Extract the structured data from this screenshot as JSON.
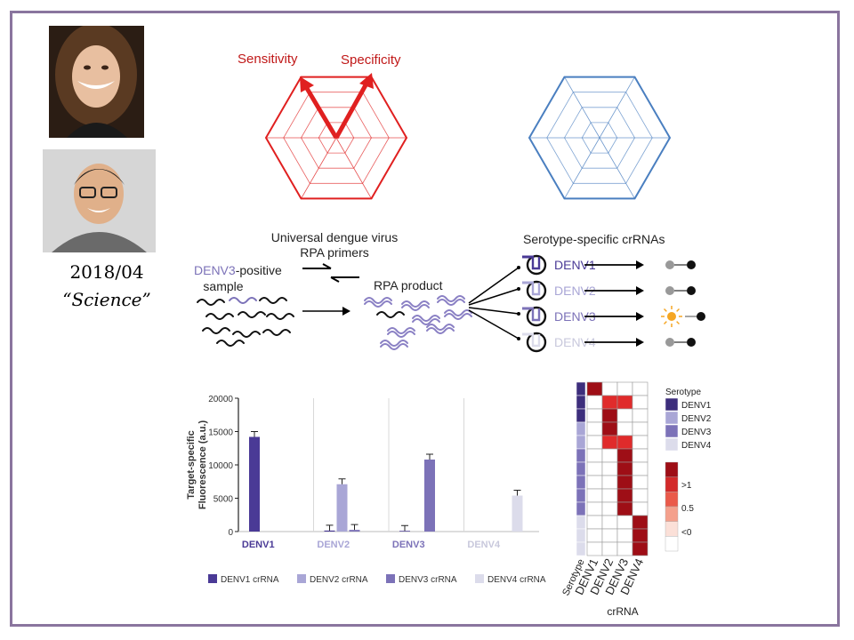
{
  "caption": {
    "date": "2018/04",
    "journal": "“Science”"
  },
  "radar": {
    "sensitivity_label": "Sensitivity",
    "specificity_label": "Specificity",
    "color_left": "#e02020",
    "color_right": "#4a7fc0"
  },
  "workflow": {
    "primers_label_1": "Universal dengue virus",
    "primers_label_2": "RPA primers",
    "sample_label_1": "DENV3-positive",
    "sample_label_2": "sample",
    "product_label": "RPA product",
    "crrna_title": "Serotype-specific crRNAs",
    "crrna_rows": [
      "DENV1",
      "DENV2",
      "DENV3",
      "DENV4"
    ]
  },
  "chart_data": [
    {
      "type": "bar",
      "ylabel": "Target-specific Fluorescence (a.u.)",
      "ylim": [
        0,
        20000
      ],
      "yticks": [
        "0",
        "5000",
        "10000",
        "15000",
        "20000"
      ],
      "categories": [
        "DENV1",
        "DENV2",
        "DENV3",
        "DENV4"
      ],
      "series": [
        {
          "name": "DENV1 crRNA",
          "color": "#4a3a96",
          "values": [
            14200,
            150,
            100,
            0
          ]
        },
        {
          "name": "DENV2 crRNA",
          "color": "#a9a6d6",
          "values": [
            0,
            7100,
            0,
            0
          ]
        },
        {
          "name": "DENV3 crRNA",
          "color": "#7c72b8",
          "values": [
            0,
            250,
            10800,
            0
          ]
        },
        {
          "name": "DENV4 crRNA",
          "color": "#dcdceb",
          "values": [
            0,
            0,
            0,
            5400
          ]
        }
      ],
      "grid": false,
      "legend": "bottom"
    },
    {
      "type": "heatmap",
      "xlabel": "crRNA",
      "columns": [
        "Serotype",
        "DENV1",
        "DENV2",
        "DENV3",
        "DENV4"
      ],
      "serotype_legend_title": "Serotype",
      "serotypes": [
        "DENV1",
        "DENV2",
        "DENV3",
        "DENV4"
      ],
      "serotype_colors": [
        "#3d2e7c",
        "#a9a6d6",
        "#7c72b8",
        "#dcdceb"
      ],
      "scale_labels": [
        ">1",
        "0.5",
        "<0"
      ],
      "scale_colors": [
        "#9e0e16",
        "#d32a2a",
        "#ea5a4a",
        "#f4a08c",
        "#fbe0d8",
        "#ffffff"
      ],
      "rows": [
        {
          "serotype": 0,
          "values": [
            1,
            0,
            0,
            0
          ]
        },
        {
          "serotype": 0,
          "values": [
            0,
            0.8,
            0.8,
            0
          ]
        },
        {
          "serotype": 0,
          "values": [
            0,
            1,
            0,
            0
          ]
        },
        {
          "serotype": 1,
          "values": [
            0,
            1,
            0,
            0
          ]
        },
        {
          "serotype": 1,
          "values": [
            0,
            0.8,
            0.8,
            0
          ]
        },
        {
          "serotype": 2,
          "values": [
            0,
            0,
            1,
            0
          ]
        },
        {
          "serotype": 2,
          "values": [
            0,
            0,
            1,
            0
          ]
        },
        {
          "serotype": 2,
          "values": [
            0,
            0,
            1,
            0
          ]
        },
        {
          "serotype": 2,
          "values": [
            0,
            0,
            1,
            0
          ]
        },
        {
          "serotype": 2,
          "values": [
            0,
            0,
            1,
            0
          ]
        },
        {
          "serotype": 3,
          "values": [
            0,
            0,
            0,
            1
          ]
        },
        {
          "serotype": 3,
          "values": [
            0,
            0,
            0,
            1
          ]
        },
        {
          "serotype": 3,
          "values": [
            0,
            0,
            0,
            1
          ]
        }
      ]
    }
  ]
}
